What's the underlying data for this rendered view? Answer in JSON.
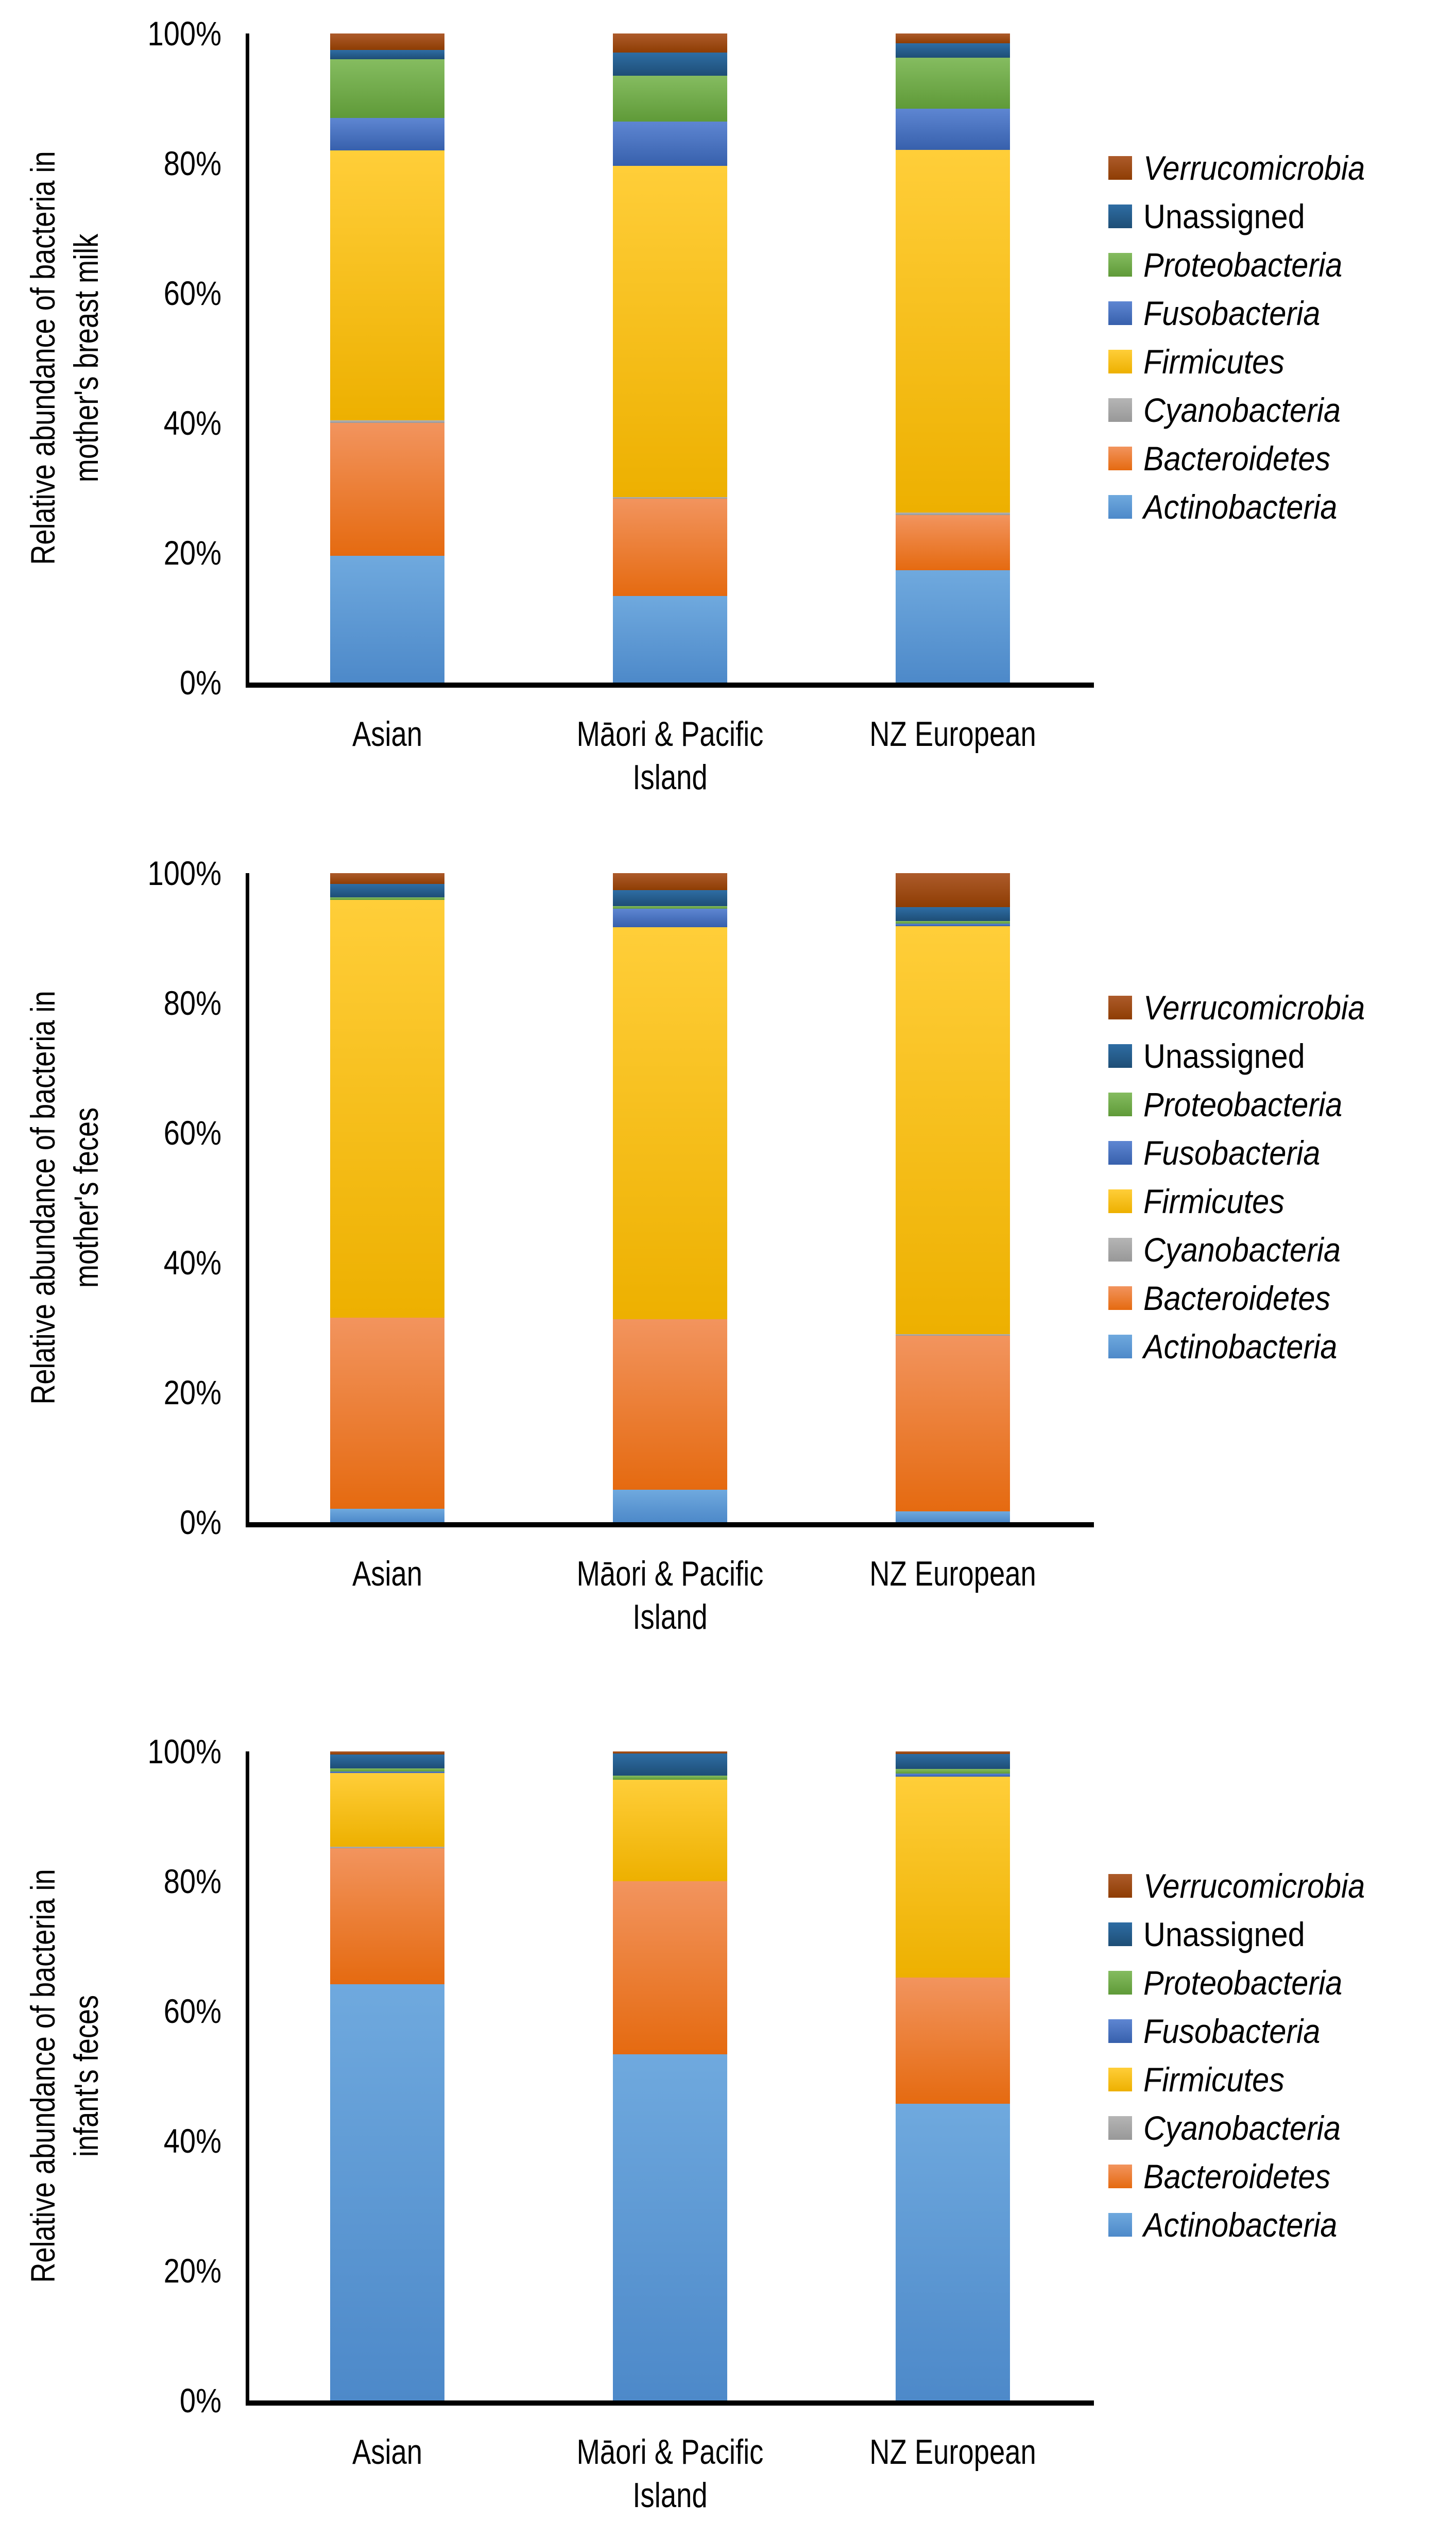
{
  "y_axis_ticks": [
    "100%",
    "80%",
    "60%",
    "40%",
    "20%",
    "0%"
  ],
  "x_categories_lines": [
    [
      "Asian"
    ],
    [
      "Māori & Pacific",
      "Island"
    ],
    [
      "NZ European"
    ]
  ],
  "palette": {
    "Actinobacteria": {
      "base": "#5B9BD5",
      "light": "#6FA9DE",
      "dark": "#4D89C9",
      "italic": true
    },
    "Bacteroidetes": {
      "base": "#ED7D31",
      "light": "#F2945E",
      "dark": "#E56A10",
      "italic": true
    },
    "Cyanobacteria": {
      "base": "#A5A5A5",
      "light": "#B5B5B5",
      "dark": "#989898",
      "italic": true
    },
    "Firmicutes": {
      "base": "#FFC000",
      "light": "#FFCE39",
      "dark": "#EDB000",
      "italic": true
    },
    "Fusobacteria": {
      "base": "#4472C4",
      "light": "#5E86D2",
      "dark": "#3760AC",
      "italic": true
    },
    "Proteobacteria": {
      "base": "#70AD47",
      "light": "#85BC60",
      "dark": "#5F9A38",
      "italic": true
    },
    "Unassigned": {
      "base": "#255E91",
      "light": "#2E6DA4",
      "dark": "#1E4E76",
      "italic": false
    },
    "Verrucomicrobia": {
      "base": "#9E480E",
      "light": "#AD5B2B",
      "dark": "#8E3D03",
      "italic": true
    }
  },
  "legend_order": [
    "Verrucomicrobia",
    "Unassigned",
    "Proteobacteria",
    "Fusobacteria",
    "Firmicutes",
    "Cyanobacteria",
    "Bacteroidetes",
    "Actinobacteria"
  ],
  "chart_data": [
    {
      "type": "bar",
      "stacked": true,
      "grid": false,
      "legend_position": "right",
      "ylim": [
        0,
        100
      ],
      "yticks_percent": [
        0,
        20,
        40,
        60,
        80,
        100
      ],
      "ylabel": "Relative abundance of bacteria in mother's breast milk",
      "ylabel_lines": [
        "Relative abundance of bacteria in",
        "mother's breast milk"
      ],
      "categories": [
        "Asian",
        "Māori & Pacific Island",
        "NZ European"
      ],
      "series": [
        {
          "name": "Actinobacteria",
          "values": [
            19.5,
            13.3,
            17.3
          ]
        },
        {
          "name": "Bacteroidetes",
          "values": [
            20.5,
            15.0,
            8.5
          ]
        },
        {
          "name": "Cyanobacteria",
          "values": [
            0.4,
            0.3,
            0.4
          ]
        },
        {
          "name": "Firmicutes",
          "values": [
            41.6,
            51.0,
            55.9
          ]
        },
        {
          "name": "Fusobacteria",
          "values": [
            5.0,
            6.8,
            6.3
          ]
        },
        {
          "name": "Proteobacteria",
          "values": [
            9.0,
            7.1,
            7.9
          ]
        },
        {
          "name": "Unassigned",
          "values": [
            1.5,
            3.6,
            2.2
          ]
        },
        {
          "name": "Verrucomicrobia",
          "values": [
            2.5,
            2.9,
            1.5
          ]
        }
      ]
    },
    {
      "type": "bar",
      "stacked": true,
      "grid": false,
      "legend_position": "right",
      "ylim": [
        0,
        100
      ],
      "yticks_percent": [
        0,
        20,
        40,
        60,
        80,
        100
      ],
      "ylabel": "Relative abundance of bacteria in mother's feces",
      "ylabel_lines": [
        "Relative abundance of bacteria in",
        "mother's feces"
      ],
      "categories": [
        "Asian",
        "Māori & Pacific Island",
        "NZ European"
      ],
      "series": [
        {
          "name": "Actinobacteria",
          "values": [
            2.1,
            5.0,
            1.7
          ]
        },
        {
          "name": "Bacteroidetes",
          "values": [
            29.4,
            26.3,
            27.0
          ]
        },
        {
          "name": "Cyanobacteria",
          "values": [
            0.0,
            0.0,
            0.3
          ]
        },
        {
          "name": "Firmicutes",
          "values": [
            64.4,
            60.4,
            62.8
          ]
        },
        {
          "name": "Fusobacteria",
          "values": [
            0.0,
            2.8,
            0.4
          ]
        },
        {
          "name": "Proteobacteria",
          "values": [
            0.4,
            0.4,
            0.4
          ]
        },
        {
          "name": "Unassigned",
          "values": [
            2.0,
            2.5,
            2.2
          ]
        },
        {
          "name": "Verrucomicrobia",
          "values": [
            1.7,
            2.6,
            5.2
          ]
        }
      ]
    },
    {
      "type": "bar",
      "stacked": true,
      "grid": false,
      "legend_position": "right",
      "ylim": [
        0,
        100
      ],
      "yticks_percent": [
        0,
        20,
        40,
        60,
        80,
        100
      ],
      "ylabel": "Relative abundance of bacteria in infant's feces",
      "ylabel_lines": [
        "Relative abundance of bacteria in",
        "infant's feces"
      ],
      "categories": [
        "Asian",
        "Māori & Pacific Island",
        "NZ European"
      ],
      "series": [
        {
          "name": "Actinobacteria",
          "values": [
            64.1,
            53.3,
            45.7
          ]
        },
        {
          "name": "Bacteroidetes",
          "values": [
            21.0,
            26.7,
            19.5
          ]
        },
        {
          "name": "Cyanobacteria",
          "values": [
            0.2,
            0.0,
            0.0
          ]
        },
        {
          "name": "Firmicutes",
          "values": [
            11.4,
            15.6,
            30.9
          ]
        },
        {
          "name": "Fusobacteria",
          "values": [
            0.2,
            0.0,
            0.5
          ]
        },
        {
          "name": "Proteobacteria",
          "values": [
            0.5,
            0.7,
            0.7
          ]
        },
        {
          "name": "Unassigned",
          "values": [
            2.1,
            3.4,
            2.3
          ]
        },
        {
          "name": "Verrucomicrobia",
          "values": [
            0.5,
            0.3,
            0.4
          ]
        }
      ]
    }
  ]
}
